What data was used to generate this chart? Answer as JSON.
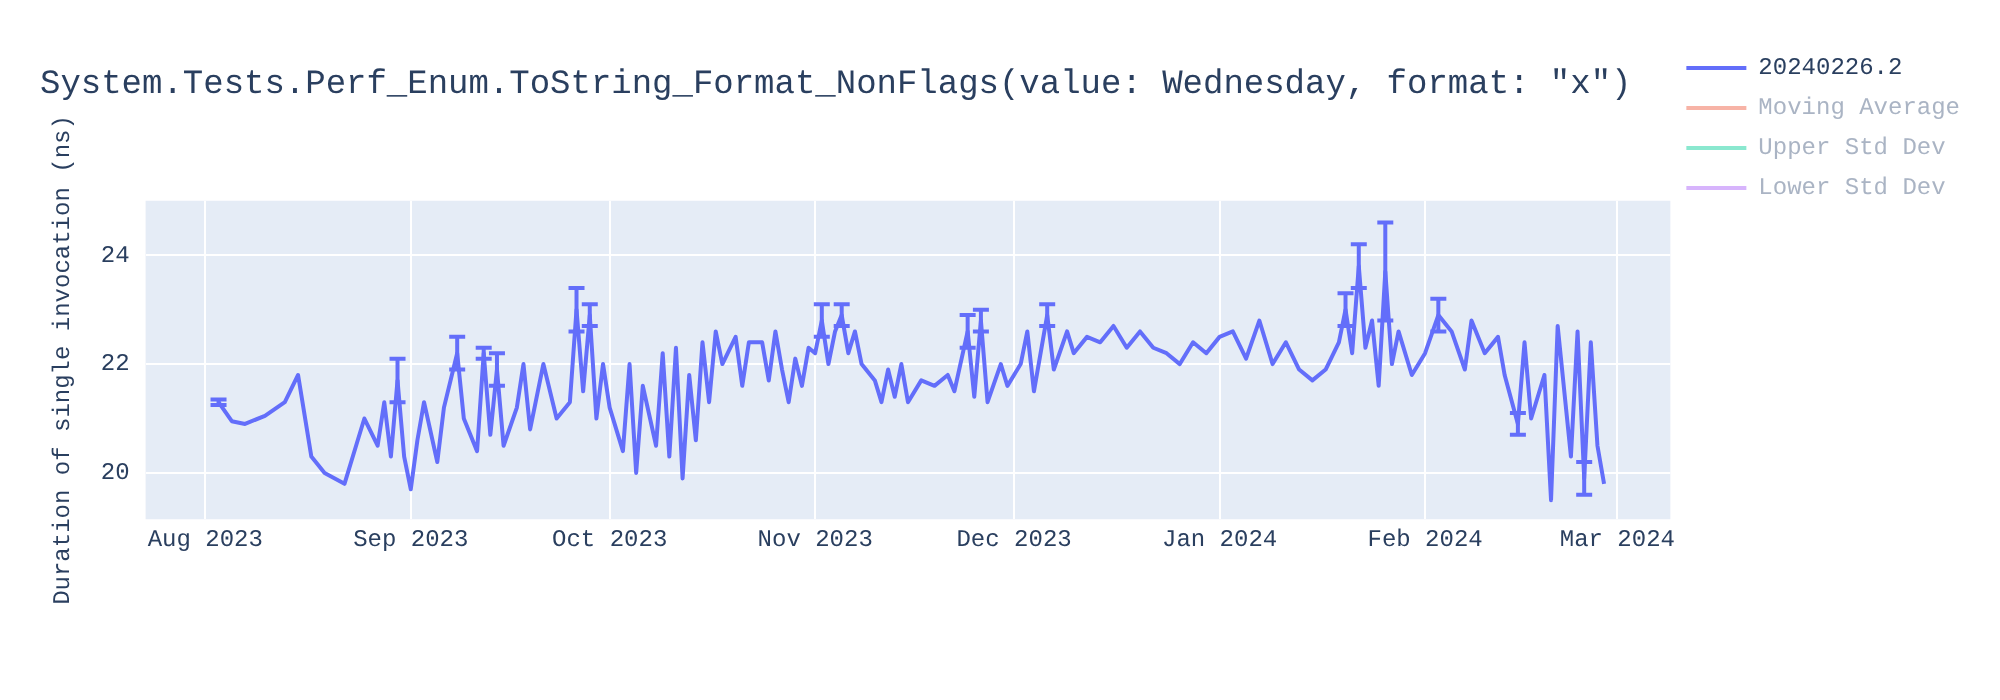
{
  "chart_data": {
    "type": "line",
    "title": "System.Tests.Perf_Enum.ToString_Format_NonFlags(value: Wednesday, format: \"x\")",
    "ylabel": "Duration of single invocation (ns)",
    "xlim": [
      "2023-07-23",
      "2024-03-09"
    ],
    "xticks": [
      {
        "value": "2023-08-01",
        "label": "Aug 2023"
      },
      {
        "value": "2023-09-01",
        "label": "Sep 2023"
      },
      {
        "value": "2023-10-01",
        "label": "Oct 2023"
      },
      {
        "value": "2023-11-01",
        "label": "Nov 2023"
      },
      {
        "value": "2023-12-01",
        "label": "Dec 2023"
      },
      {
        "value": "2024-01-01",
        "label": "Jan 2024"
      },
      {
        "value": "2024-02-01",
        "label": "Feb 2024"
      },
      {
        "value": "2024-03-01",
        "label": "Mar 2024"
      }
    ],
    "ylim": [
      19.15,
      25
    ],
    "yticks": [
      20,
      22,
      24
    ],
    "grid": true,
    "legend": "top right",
    "marker": "none",
    "line_style": "solid",
    "series": [
      {
        "name": "20240226.2",
        "color": "#636efa",
        "x": [
          "2023-08-03",
          "2023-08-05",
          "2023-08-07",
          "2023-08-10",
          "2023-08-13",
          "2023-08-15",
          "2023-08-17",
          "2023-08-19",
          "2023-08-22",
          "2023-08-24",
          "2023-08-25",
          "2023-08-27",
          "2023-08-28",
          "2023-08-29",
          "2023-08-30",
          "2023-08-31",
          "2023-09-01",
          "2023-09-02",
          "2023-09-03",
          "2023-09-05",
          "2023-09-06",
          "2023-09-08",
          "2023-09-09",
          "2023-09-11",
          "2023-09-12",
          "2023-09-13",
          "2023-09-14",
          "2023-09-15",
          "2023-09-17",
          "2023-09-18",
          "2023-09-19",
          "2023-09-21",
          "2023-09-23",
          "2023-09-25",
          "2023-09-26",
          "2023-09-27",
          "2023-09-28",
          "2023-09-29",
          "2023-09-30",
          "2023-10-01",
          "2023-10-03",
          "2023-10-04",
          "2023-10-05",
          "2023-10-06",
          "2023-10-08",
          "2023-10-09",
          "2023-10-10",
          "2023-10-11",
          "2023-10-12",
          "2023-10-13",
          "2023-10-14",
          "2023-10-15",
          "2023-10-16",
          "2023-10-17",
          "2023-10-18",
          "2023-10-20",
          "2023-10-21",
          "2023-10-22",
          "2023-10-24",
          "2023-10-25",
          "2023-10-26",
          "2023-10-27",
          "2023-10-28",
          "2023-10-29",
          "2023-10-30",
          "2023-10-31",
          "2023-11-01",
          "2023-11-02",
          "2023-11-03",
          "2023-11-04",
          "2023-11-05",
          "2023-11-06",
          "2023-11-07",
          "2023-11-08",
          "2023-11-10",
          "2023-11-11",
          "2023-11-12",
          "2023-11-13",
          "2023-11-14",
          "2023-11-15",
          "2023-11-17",
          "2023-11-19",
          "2023-11-21",
          "2023-11-22",
          "2023-11-24",
          "2023-11-25",
          "2023-11-26",
          "2023-11-27",
          "2023-11-29",
          "2023-11-30",
          "2023-12-02",
          "2023-12-03",
          "2023-12-04",
          "2023-12-06",
          "2023-12-07",
          "2023-12-09",
          "2023-12-10",
          "2023-12-12",
          "2023-12-14",
          "2023-12-16",
          "2023-12-18",
          "2023-12-20",
          "2023-12-22",
          "2023-12-24",
          "2023-12-26",
          "2023-12-28",
          "2023-12-30",
          "2024-01-01",
          "2024-01-03",
          "2024-01-05",
          "2024-01-07",
          "2024-01-09",
          "2024-01-11",
          "2024-01-13",
          "2024-01-15",
          "2024-01-17",
          "2024-01-19",
          "2024-01-20",
          "2024-01-21",
          "2024-01-22",
          "2024-01-23",
          "2024-01-24",
          "2024-01-25",
          "2024-01-26",
          "2024-01-27",
          "2024-01-28",
          "2024-01-30",
          "2024-02-01",
          "2024-02-03",
          "2024-02-05",
          "2024-02-07",
          "2024-02-08",
          "2024-02-10",
          "2024-02-12",
          "2024-02-13",
          "2024-02-15",
          "2024-02-16",
          "2024-02-17",
          "2024-02-19",
          "2024-02-20",
          "2024-02-21",
          "2024-02-23",
          "2024-02-24",
          "2024-02-25",
          "2024-02-26",
          "2024-02-27",
          "2024-02-28"
        ],
        "values": [
          21.3,
          20.95,
          20.9,
          21.05,
          21.3,
          21.8,
          20.3,
          20.0,
          19.8,
          20.6,
          21.0,
          20.5,
          21.3,
          20.3,
          21.7,
          20.3,
          19.7,
          20.6,
          21.3,
          20.2,
          21.2,
          22.2,
          21.0,
          20.4,
          22.2,
          20.7,
          21.9,
          20.5,
          21.2,
          22.0,
          20.8,
          22.0,
          21.0,
          21.3,
          23.0,
          21.5,
          22.9,
          21.0,
          22.0,
          21.2,
          20.4,
          22.0,
          20.0,
          21.6,
          20.5,
          22.2,
          20.3,
          22.3,
          19.9,
          21.8,
          20.6,
          22.4,
          21.3,
          22.6,
          22.0,
          22.5,
          21.6,
          22.4,
          22.4,
          21.7,
          22.6,
          21.9,
          21.3,
          22.1,
          21.6,
          22.3,
          22.2,
          22.8,
          22.0,
          22.6,
          22.9,
          22.2,
          22.6,
          22.0,
          21.7,
          21.3,
          21.9,
          21.4,
          22.0,
          21.3,
          21.7,
          21.6,
          21.8,
          21.5,
          22.6,
          21.4,
          22.8,
          21.3,
          22.0,
          21.6,
          22.0,
          22.6,
          21.5,
          22.9,
          21.9,
          22.6,
          22.2,
          22.5,
          22.4,
          22.7,
          22.3,
          22.6,
          22.3,
          22.2,
          22.0,
          22.4,
          22.2,
          22.5,
          22.6,
          22.1,
          22.8,
          22.0,
          22.4,
          21.9,
          21.7,
          21.9,
          22.4,
          23.0,
          22.2,
          23.8,
          22.3,
          22.8,
          21.6,
          23.7,
          22.0,
          22.6,
          21.8,
          22.2,
          22.9,
          22.6,
          21.9,
          22.8,
          22.2,
          22.5,
          21.8,
          20.9,
          22.4,
          21.0,
          21.8,
          19.5,
          22.7,
          20.3,
          22.6,
          19.9,
          22.4,
          20.5,
          19.8
        ],
        "errors": [
          0.05,
          null,
          null,
          null,
          null,
          null,
          null,
          null,
          null,
          null,
          null,
          null,
          null,
          null,
          0.4,
          null,
          null,
          null,
          null,
          null,
          null,
          0.3,
          null,
          null,
          0.1,
          null,
          0.3,
          null,
          null,
          null,
          null,
          null,
          null,
          null,
          0.4,
          null,
          0.2,
          null,
          null,
          null,
          null,
          null,
          null,
          null,
          null,
          null,
          null,
          null,
          null,
          null,
          null,
          null,
          null,
          null,
          null,
          null,
          null,
          null,
          null,
          null,
          null,
          null,
          null,
          null,
          null,
          null,
          null,
          0.3,
          null,
          null,
          0.2,
          null,
          null,
          null,
          null,
          null,
          null,
          null,
          null,
          null,
          null,
          null,
          null,
          null,
          0.3,
          null,
          0.2,
          null,
          null,
          null,
          null,
          null,
          null,
          0.2,
          null,
          null,
          null,
          null,
          null,
          null,
          null,
          null,
          null,
          null,
          null,
          null,
          null,
          null,
          null,
          null,
          null,
          null,
          null,
          null,
          null,
          null,
          null,
          0.3,
          null,
          0.4,
          null,
          null,
          null,
          0.9,
          null,
          null,
          null,
          null,
          0.3,
          null,
          null,
          null,
          null,
          null,
          null,
          0.2,
          null,
          null,
          null,
          null,
          null,
          null,
          null,
          0.3,
          null,
          null,
          null
        ]
      },
      {
        "name": "Moving Average",
        "color": "#f7b3a6"
      },
      {
        "name": "Upper Std Dev",
        "color": "#8ae8cf"
      },
      {
        "name": "Lower Std Dev",
        "color": "#d7b4fc"
      }
    ]
  }
}
